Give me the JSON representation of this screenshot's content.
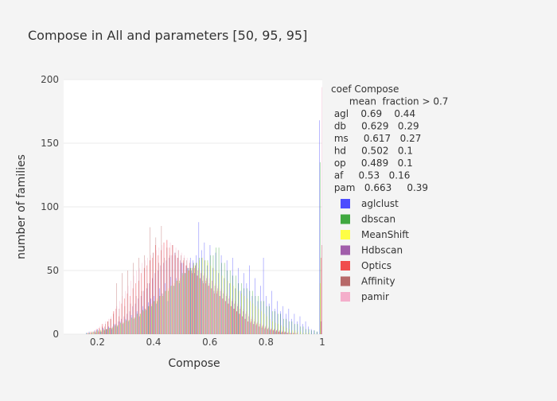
{
  "chart_data": {
    "type": "bar",
    "title": "Compose in All  and parameters [50, 95, 95]",
    "xlabel": "Compose",
    "ylabel": "number of families",
    "xlim": [
      0.08,
      1.0
    ],
    "ylim": [
      0,
      200
    ],
    "xticks": [
      {
        "v": 0.2,
        "label": "0.2"
      },
      {
        "v": 0.4,
        "label": "0.4"
      },
      {
        "v": 0.6,
        "label": "0.6"
      },
      {
        "v": 0.8,
        "label": "0.8"
      },
      {
        "v": 1.0,
        "label": "1"
      }
    ],
    "yticks": [
      {
        "v": 0,
        "label": "0"
      },
      {
        "v": 50,
        "label": "50"
      },
      {
        "v": 100,
        "label": "100"
      },
      {
        "v": 150,
        "label": "150"
      },
      {
        "v": 200,
        "label": "200"
      }
    ],
    "bin_width": 0.01,
    "bin_starts": [
      0.08,
      0.09,
      0.1,
      0.11,
      0.12,
      0.13,
      0.14,
      0.15,
      0.16,
      0.17,
      0.18,
      0.19,
      0.2,
      0.21,
      0.22,
      0.23,
      0.24,
      0.25,
      0.26,
      0.27,
      0.28,
      0.29,
      0.3,
      0.31,
      0.32,
      0.33,
      0.34,
      0.35,
      0.36,
      0.37,
      0.38,
      0.39,
      0.4,
      0.41,
      0.42,
      0.43,
      0.44,
      0.45,
      0.46,
      0.47,
      0.48,
      0.49,
      0.5,
      0.51,
      0.52,
      0.53,
      0.54,
      0.55,
      0.56,
      0.57,
      0.58,
      0.59,
      0.6,
      0.61,
      0.62,
      0.63,
      0.64,
      0.65,
      0.66,
      0.67,
      0.68,
      0.69,
      0.7,
      0.71,
      0.72,
      0.73,
      0.74,
      0.75,
      0.76,
      0.77,
      0.78,
      0.79,
      0.8,
      0.81,
      0.82,
      0.83,
      0.84,
      0.85,
      0.86,
      0.87,
      0.88,
      0.89,
      0.9,
      0.91,
      0.92,
      0.93,
      0.94,
      0.95,
      0.96,
      0.97,
      0.98,
      0.99
    ],
    "series": [
      {
        "name": "aglclust",
        "color": "#3b3bff",
        "values": [
          0,
          0,
          0,
          0,
          0,
          0,
          0,
          0,
          1,
          2,
          1,
          3,
          4,
          2,
          5,
          4,
          6,
          4,
          8,
          6,
          10,
          8,
          12,
          10,
          15,
          12,
          18,
          14,
          22,
          20,
          25,
          28,
          30,
          24,
          36,
          32,
          40,
          26,
          45,
          38,
          44,
          40,
          56,
          48,
          52,
          60,
          58,
          62,
          88,
          66,
          72,
          54,
          70,
          52,
          64,
          48,
          62,
          44,
          58,
          40,
          60,
          36,
          52,
          34,
          48,
          40,
          54,
          30,
          44,
          26,
          38,
          60,
          30,
          24,
          34,
          20,
          26,
          18,
          22,
          16,
          20,
          12,
          16,
          10,
          14,
          8,
          10,
          6,
          4,
          3,
          2,
          168
        ]
      },
      {
        "name": "dbscan",
        "color": "#2ca02c",
        "values": [
          0,
          0,
          0,
          0,
          0,
          0,
          0,
          0,
          1,
          1,
          2,
          2,
          3,
          3,
          4,
          4,
          5,
          5,
          7,
          7,
          9,
          9,
          11,
          11,
          13,
          13,
          16,
          16,
          19,
          19,
          22,
          22,
          26,
          26,
          30,
          30,
          34,
          34,
          38,
          38,
          42,
          42,
          48,
          48,
          52,
          52,
          56,
          56,
          60,
          60,
          58,
          58,
          62,
          62,
          68,
          68,
          56,
          56,
          50,
          50,
          46,
          46,
          40,
          40,
          36,
          36,
          34,
          34,
          30,
          30,
          26,
          26,
          22,
          22,
          18,
          18,
          16,
          16,
          12,
          12,
          10,
          10,
          8,
          8,
          6,
          6,
          4,
          4,
          3,
          3,
          2,
          135
        ]
      },
      {
        "name": "MeanShift",
        "color": "#ffff33",
        "values": [
          0,
          0,
          0,
          0,
          0,
          0,
          0,
          0,
          0,
          1,
          1,
          2,
          2,
          3,
          3,
          4,
          4,
          5,
          6,
          7,
          8,
          9,
          10,
          11,
          12,
          13,
          14,
          16,
          18,
          20,
          22,
          24,
          26,
          28,
          30,
          32,
          34,
          36,
          38,
          40,
          42,
          44,
          46,
          48,
          50,
          52,
          54,
          56,
          58,
          60,
          58,
          56,
          54,
          52,
          50,
          48,
          46,
          44,
          42,
          40,
          38,
          36,
          34,
          32,
          30,
          28,
          26,
          24,
          22,
          20,
          18,
          16,
          14,
          12,
          10,
          9,
          8,
          7,
          6,
          5,
          4,
          3,
          3,
          2,
          2,
          1,
          1,
          1,
          0,
          0,
          0,
          40
        ]
      },
      {
        "name": "Hdbscan",
        "color": "#984ea3",
        "values": [
          0,
          0,
          0,
          0,
          0,
          0,
          0,
          0,
          0,
          0,
          0,
          1,
          2,
          2,
          3,
          4,
          5,
          6,
          8,
          10,
          12,
          14,
          16,
          18,
          22,
          24,
          28,
          30,
          34,
          36,
          40,
          44,
          48,
          50,
          54,
          56,
          58,
          60,
          62,
          64,
          60,
          58,
          56,
          54,
          52,
          50,
          48,
          46,
          44,
          42,
          40,
          38,
          36,
          34,
          32,
          30,
          28,
          26,
          24,
          22,
          20,
          18,
          16,
          14,
          12,
          10,
          9,
          8,
          7,
          6,
          5,
          4,
          4,
          3,
          3,
          2,
          2,
          1,
          1,
          1,
          0,
          0,
          0,
          0,
          0,
          0,
          0,
          0,
          0,
          0,
          0,
          10
        ]
      },
      {
        "name": "Optics",
        "color": "#ef3b3b",
        "values": [
          0,
          0,
          0,
          0,
          0,
          0,
          0,
          0,
          1,
          2,
          2,
          4,
          5,
          8,
          6,
          10,
          12,
          18,
          20,
          14,
          24,
          28,
          32,
          30,
          36,
          40,
          42,
          48,
          52,
          54,
          58,
          60,
          70,
          62,
          66,
          72,
          74,
          68,
          70,
          62,
          60,
          56,
          58,
          54,
          50,
          48,
          52,
          46,
          44,
          40,
          42,
          38,
          36,
          32,
          34,
          30,
          28,
          26,
          24,
          22,
          20,
          18,
          16,
          14,
          12,
          10,
          10,
          8,
          8,
          6,
          6,
          5,
          4,
          4,
          3,
          3,
          2,
          2,
          2,
          1,
          1,
          1,
          1,
          0,
          0,
          0,
          0,
          0,
          0,
          0,
          0,
          60
        ]
      },
      {
        "name": "Affinity",
        "color": "#b05a5a",
        "values": [
          0,
          0,
          0,
          0,
          0,
          0,
          0,
          0,
          1,
          1,
          2,
          3,
          4,
          6,
          8,
          10,
          12,
          16,
          40,
          20,
          48,
          22,
          50,
          24,
          56,
          30,
          60,
          34,
          62,
          40,
          84,
          64,
          76,
          56,
          85,
          60,
          68,
          62,
          70,
          64,
          66,
          62,
          60,
          58,
          56,
          52,
          54,
          50,
          48,
          46,
          44,
          40,
          42,
          38,
          36,
          34,
          32,
          30,
          28,
          26,
          24,
          22,
          20,
          18,
          16,
          14,
          12,
          10,
          9,
          8,
          7,
          6,
          5,
          4,
          4,
          3,
          3,
          2,
          2,
          1,
          1,
          1,
          0,
          0,
          0,
          0,
          0,
          0,
          0,
          0,
          0,
          70
        ]
      },
      {
        "name": "pamir",
        "color": "#f4a6c6",
        "values": [
          0,
          0,
          0,
          0,
          0,
          0,
          0,
          0,
          1,
          2,
          3,
          4,
          6,
          8,
          10,
          12,
          14,
          18,
          22,
          26,
          30,
          34,
          38,
          42,
          46,
          50,
          52,
          56,
          58,
          60,
          62,
          64,
          66,
          68,
          70,
          72,
          74,
          72,
          70,
          68,
          66,
          64,
          62,
          60,
          58,
          56,
          54,
          52,
          50,
          48,
          46,
          44,
          42,
          40,
          38,
          36,
          34,
          32,
          30,
          28,
          26,
          24,
          22,
          20,
          18,
          16,
          14,
          12,
          10,
          9,
          8,
          7,
          6,
          5,
          4,
          4,
          3,
          3,
          2,
          2,
          1,
          1,
          1,
          0,
          0,
          0,
          0,
          0,
          0,
          0,
          0,
          194
        ]
      }
    ],
    "annotation": {
      "lines": [
        "coef Compose",
        "      mean  fraction > 0.7",
        " agl    0.69    0.44",
        " db     0.629   0.29",
        " ms     0.617   0.27",
        " hd     0.502   0.1",
        " op     0.489   0.1",
        " af     0.53   0.16",
        " pam   0.663     0.39"
      ]
    },
    "legend_position": "right"
  }
}
